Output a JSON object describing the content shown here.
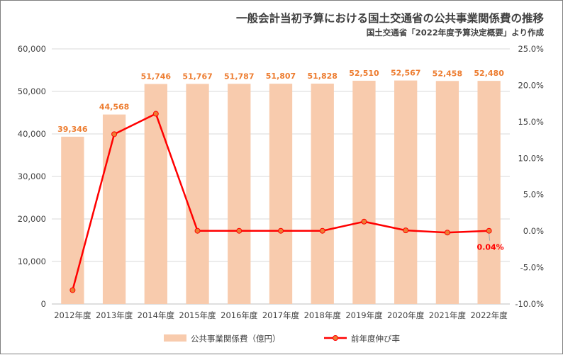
{
  "chart_data": {
    "type": "bar",
    "title": "一般会計当初予算における国土交通省の公共事業関係費の推移",
    "subtitle": "国土交通省「2022年度予算決定概要」より作成",
    "categories": [
      "2012年度",
      "2013年度",
      "2014年度",
      "2015年度",
      "2016年度",
      "2017年度",
      "2018年度",
      "2019年度",
      "2020年度",
      "2021年度",
      "2022年度"
    ],
    "bar_series": {
      "name": "公共事業関係費（億円）",
      "values": [
        39346,
        44568,
        51746,
        51767,
        51787,
        51807,
        51828,
        52510,
        52567,
        52458,
        52480
      ],
      "labels": [
        "39,346",
        "44,568",
        "51,746",
        "51,767",
        "51,787",
        "51,807",
        "51,828",
        "52,510",
        "52,567",
        "52,458",
        "52,480"
      ],
      "color": "#f8cbad",
      "label_color": "#ed7d31"
    },
    "line_series": {
      "name": "前年度伸び率",
      "values_percent": [
        -8.1,
        13.3,
        16.1,
        0.04,
        0.04,
        0.04,
        0.04,
        1.3,
        0.1,
        -0.2,
        0.04
      ],
      "annotated_label": "0.04%",
      "annotated_index": 10,
      "color": "#ff0000",
      "marker_fill": "#ed7d31"
    },
    "y_left": {
      "min": 0,
      "max": 60000,
      "ticks": [
        "0",
        "10,000",
        "20,000",
        "30,000",
        "40,000",
        "50,000",
        "60,000"
      ]
    },
    "y_right": {
      "min": -10,
      "max": 25,
      "ticks": [
        "-10.0%",
        "-5.0%",
        "0.0%",
        "5.0%",
        "10.0%",
        "15.0%",
        "20.0%",
        "25.0%"
      ]
    },
    "grid": true,
    "legend_position": "bottom"
  }
}
